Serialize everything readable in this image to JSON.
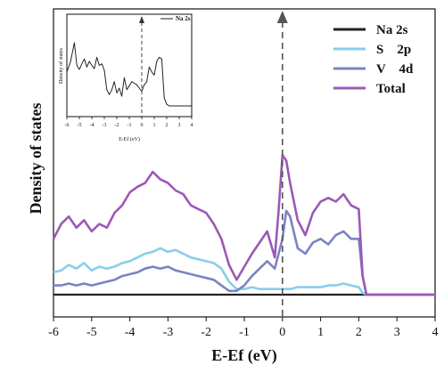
{
  "chart_data": {
    "type": "line",
    "xlabel": "E-Ef (eV)",
    "ylabel": "Density of states",
    "xlim": [
      -6,
      4
    ],
    "ylim": [
      0,
      1
    ],
    "x_ticks": [
      "-6",
      "-5",
      "-4",
      "-3",
      "-2",
      "-1",
      "0",
      "1",
      "2",
      "3",
      "4"
    ],
    "fermi_level": 0,
    "legend_position": "top-right",
    "series": [
      {
        "name": "Na 2s",
        "color": "#222222",
        "x": [
          -6,
          4
        ],
        "y": [
          0.0,
          0.0
        ]
      },
      {
        "name": "S    2p",
        "color": "#87CEEB",
        "x": [
          -6,
          -5.8,
          -5.6,
          -5.4,
          -5.2,
          -5.0,
          -4.8,
          -4.6,
          -4.4,
          -4.2,
          -4.0,
          -3.8,
          -3.6,
          -3.4,
          -3.2,
          -3.0,
          -2.8,
          -2.6,
          -2.4,
          -2.2,
          -2.0,
          -1.8,
          -1.6,
          -1.4,
          -1.2,
          -1.0,
          -0.8,
          -0.6,
          -0.4,
          -0.2,
          0.0,
          0.2,
          0.4,
          0.6,
          0.8,
          1.0,
          1.2,
          1.4,
          1.6,
          1.8,
          2.0,
          2.1,
          2.2,
          4.0
        ],
        "y": [
          0.12,
          0.13,
          0.16,
          0.14,
          0.17,
          0.13,
          0.15,
          0.14,
          0.15,
          0.17,
          0.18,
          0.2,
          0.22,
          0.23,
          0.25,
          0.23,
          0.24,
          0.22,
          0.2,
          0.19,
          0.18,
          0.17,
          0.14,
          0.07,
          0.03,
          0.03,
          0.04,
          0.03,
          0.03,
          0.03,
          0.03,
          0.03,
          0.04,
          0.04,
          0.04,
          0.04,
          0.05,
          0.05,
          0.06,
          0.05,
          0.04,
          0.01,
          0.0,
          0.0
        ]
      },
      {
        "name": "V    4d",
        "color": "#7B83C3",
        "x": [
          -6,
          -5.8,
          -5.6,
          -5.4,
          -5.2,
          -5.0,
          -4.8,
          -4.6,
          -4.4,
          -4.2,
          -4.0,
          -3.8,
          -3.6,
          -3.4,
          -3.2,
          -3.0,
          -2.8,
          -2.6,
          -2.4,
          -2.2,
          -2.0,
          -1.8,
          -1.6,
          -1.4,
          -1.2,
          -1.0,
          -0.8,
          -0.6,
          -0.4,
          -0.2,
          0.0,
          0.1,
          0.2,
          0.4,
          0.6,
          0.8,
          1.0,
          1.2,
          1.4,
          1.6,
          1.8,
          2.0,
          2.1,
          2.2,
          4.0
        ],
        "y": [
          0.05,
          0.05,
          0.06,
          0.05,
          0.06,
          0.05,
          0.06,
          0.07,
          0.08,
          0.1,
          0.11,
          0.12,
          0.14,
          0.15,
          0.14,
          0.15,
          0.13,
          0.12,
          0.11,
          0.1,
          0.09,
          0.08,
          0.05,
          0.02,
          0.02,
          0.05,
          0.1,
          0.14,
          0.18,
          0.14,
          0.3,
          0.45,
          0.42,
          0.25,
          0.22,
          0.28,
          0.3,
          0.27,
          0.32,
          0.34,
          0.3,
          0.3,
          0.1,
          0.0,
          0.0
        ]
      },
      {
        "name": "Total",
        "color": "#9B59B6",
        "x": [
          -6,
          -5.8,
          -5.6,
          -5.4,
          -5.2,
          -5.0,
          -4.8,
          -4.6,
          -4.4,
          -4.2,
          -4.0,
          -3.8,
          -3.6,
          -3.4,
          -3.2,
          -3.0,
          -2.8,
          -2.6,
          -2.4,
          -2.2,
          -2.0,
          -1.8,
          -1.6,
          -1.4,
          -1.2,
          -1.0,
          -0.8,
          -0.6,
          -0.4,
          -0.2,
          -0.1,
          0.0,
          0.1,
          0.2,
          0.4,
          0.6,
          0.8,
          1.0,
          1.2,
          1.4,
          1.6,
          1.8,
          2.0,
          2.1,
          2.2,
          4.0
        ],
        "y": [
          0.3,
          0.38,
          0.42,
          0.36,
          0.4,
          0.34,
          0.38,
          0.36,
          0.44,
          0.48,
          0.55,
          0.58,
          0.6,
          0.66,
          0.62,
          0.6,
          0.56,
          0.54,
          0.48,
          0.46,
          0.44,
          0.38,
          0.3,
          0.16,
          0.08,
          0.15,
          0.22,
          0.28,
          0.34,
          0.2,
          0.45,
          0.75,
          0.72,
          0.6,
          0.4,
          0.32,
          0.44,
          0.5,
          0.52,
          0.5,
          0.54,
          0.48,
          0.46,
          0.1,
          0.0,
          0.0
        ]
      }
    ],
    "inset": {
      "xlabel": "E-Ef (eV)",
      "ylabel": "Density of states",
      "legend": "Na 2s",
      "x_ticks": [
        "-6",
        "-5",
        "-4",
        "-3",
        "-2",
        "-1",
        "0",
        "1",
        "2",
        "3",
        "4"
      ],
      "xlim": [
        -6,
        4
      ],
      "ylim": [
        0,
        1
      ],
      "x": [
        -6,
        -5.7,
        -5.4,
        -5.2,
        -5.0,
        -4.8,
        -4.6,
        -4.4,
        -4.2,
        -4.0,
        -3.8,
        -3.6,
        -3.4,
        -3.2,
        -3.0,
        -2.8,
        -2.6,
        -2.4,
        -2.2,
        -2.0,
        -1.8,
        -1.6,
        -1.4,
        -1.2,
        -1.0,
        -0.8,
        -0.6,
        -0.4,
        -0.2,
        0.0,
        0.2,
        0.4,
        0.6,
        0.8,
        1.0,
        1.2,
        1.4,
        1.6,
        1.8,
        2.0,
        2.2,
        4.0
      ],
      "y": [
        0.42,
        0.55,
        0.78,
        0.5,
        0.45,
        0.52,
        0.58,
        0.48,
        0.55,
        0.5,
        0.46,
        0.6,
        0.5,
        0.52,
        0.44,
        0.2,
        0.14,
        0.2,
        0.3,
        0.16,
        0.22,
        0.12,
        0.35,
        0.2,
        0.25,
        0.3,
        0.28,
        0.26,
        0.22,
        0.18,
        0.26,
        0.3,
        0.48,
        0.42,
        0.38,
        0.55,
        0.6,
        0.58,
        0.1,
        0.02,
        0.0,
        0.0
      ]
    }
  }
}
